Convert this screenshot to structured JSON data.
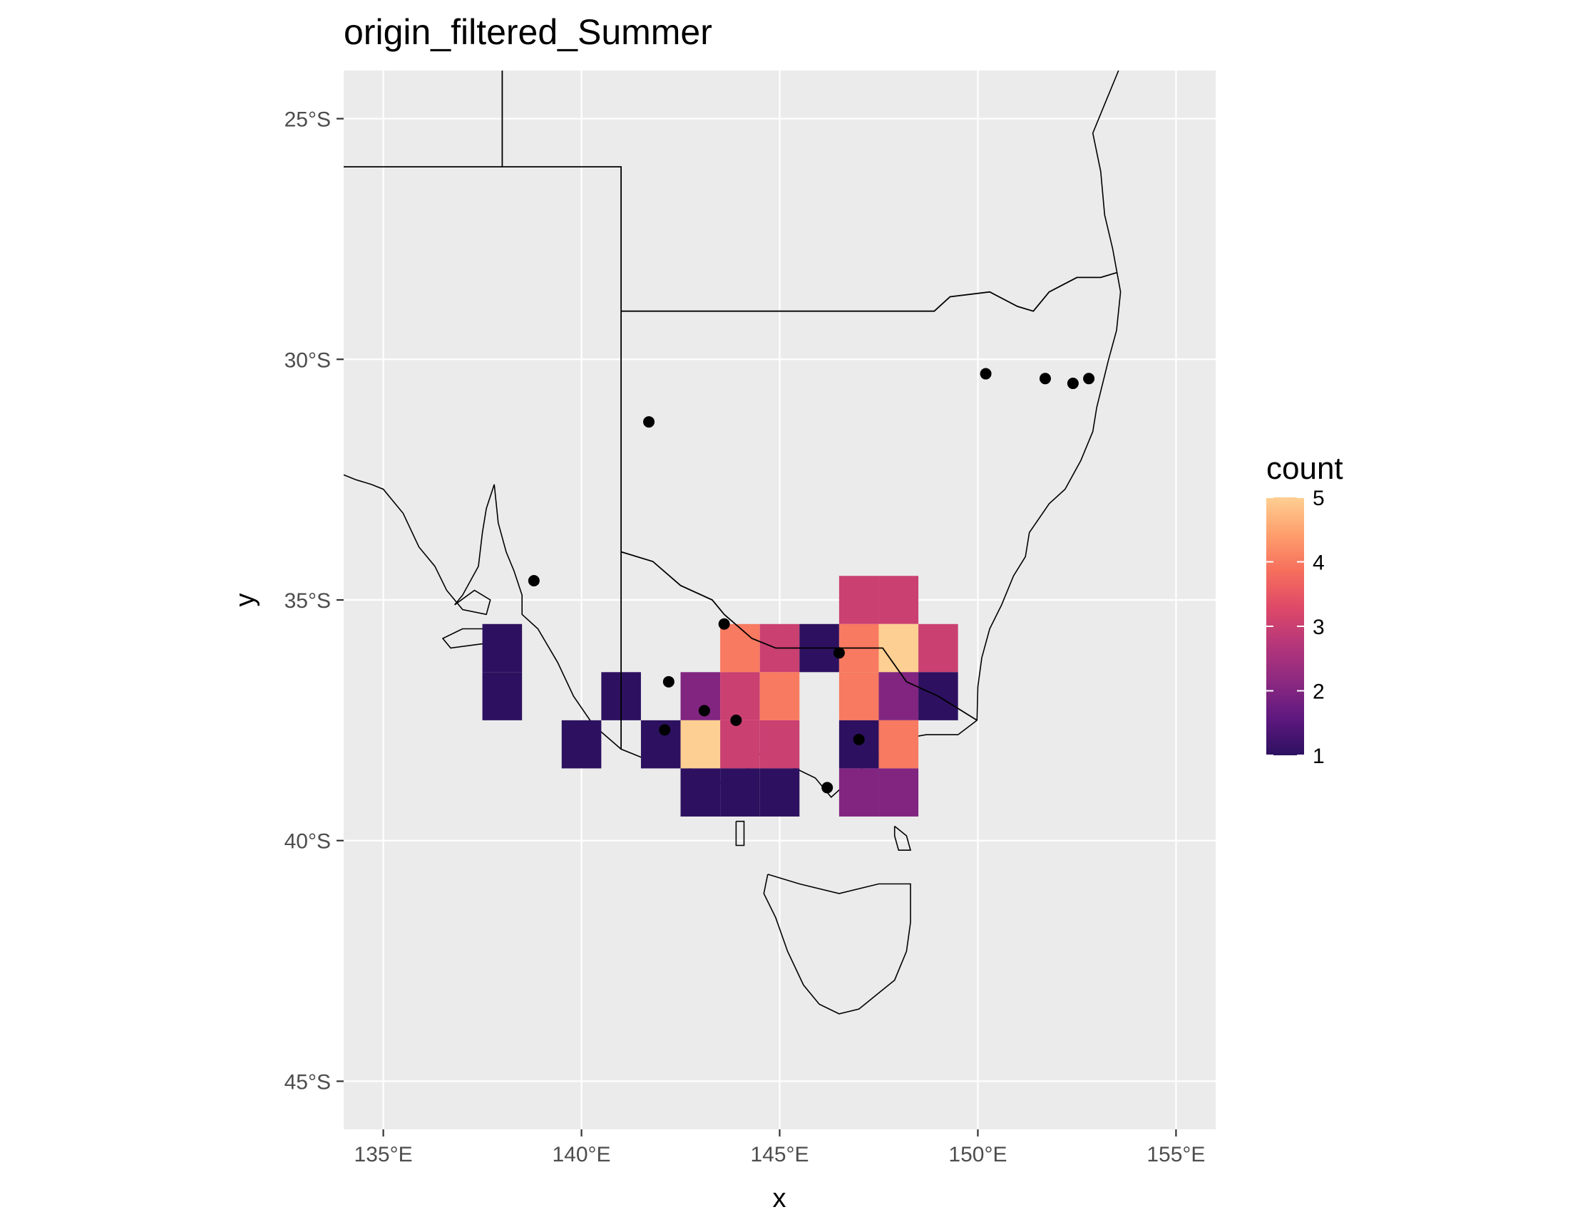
{
  "chart_data": {
    "type": "heatmap",
    "title": "origin_filtered_Summer",
    "xlabel": "x",
    "ylabel": "y",
    "xlim": [
      134,
      156
    ],
    "ylim": [
      -46,
      -24
    ],
    "x_ticks": [
      135,
      140,
      145,
      150,
      155
    ],
    "x_tick_labels": [
      "135°E",
      "140°E",
      "145°E",
      "150°E",
      "155°E"
    ],
    "y_ticks": [
      -25,
      -30,
      -35,
      -40,
      -45
    ],
    "y_tick_labels": [
      "25°S",
      "30°S",
      "35°S",
      "40°S",
      "45°S"
    ],
    "grid": true,
    "background": "#ebebeb",
    "legend": {
      "title": "count",
      "position": "right",
      "min": 1,
      "max": 5,
      "breaks": [
        1,
        2,
        3,
        4,
        5
      ],
      "break_labels": [
        "1",
        "2",
        "3",
        "4",
        "5"
      ],
      "palette": "magma",
      "colors": [
        "#2d1160",
        "#5e187f",
        "#8c2981",
        "#b5367a",
        "#de4968",
        "#f66e5c",
        "#fe9f6d",
        "#fecf92"
      ]
    },
    "bin_size": 1,
    "cells": [
      {
        "x": 138,
        "y": -36,
        "count": 1
      },
      {
        "x": 138,
        "y": -37,
        "count": 1
      },
      {
        "x": 140,
        "y": -38,
        "count": 1
      },
      {
        "x": 141,
        "y": -37,
        "count": 1
      },
      {
        "x": 142,
        "y": -38,
        "count": 1
      },
      {
        "x": 143,
        "y": -37,
        "count": 2
      },
      {
        "x": 143,
        "y": -38,
        "count": 5
      },
      {
        "x": 143,
        "y": -39,
        "count": 1
      },
      {
        "x": 144,
        "y": -36,
        "count": 4
      },
      {
        "x": 144,
        "y": -37,
        "count": 3
      },
      {
        "x": 144,
        "y": -38,
        "count": 3
      },
      {
        "x": 144,
        "y": -39,
        "count": 1
      },
      {
        "x": 145,
        "y": -36,
        "count": 3
      },
      {
        "x": 145,
        "y": -37,
        "count": 4
      },
      {
        "x": 145,
        "y": -38,
        "count": 3
      },
      {
        "x": 145,
        "y": -39,
        "count": 1
      },
      {
        "x": 146,
        "y": -36,
        "count": 1
      },
      {
        "x": 147,
        "y": -35,
        "count": 3
      },
      {
        "x": 147,
        "y": -36,
        "count": 4
      },
      {
        "x": 147,
        "y": -37,
        "count": 4
      },
      {
        "x": 147,
        "y": -38,
        "count": 1
      },
      {
        "x": 147,
        "y": -39,
        "count": 2
      },
      {
        "x": 148,
        "y": -35,
        "count": 3
      },
      {
        "x": 148,
        "y": -36,
        "count": 5
      },
      {
        "x": 148,
        "y": -37,
        "count": 2
      },
      {
        "x": 148,
        "y": -38,
        "count": 4
      },
      {
        "x": 148,
        "y": -39,
        "count": 2
      },
      {
        "x": 149,
        "y": -36,
        "count": 3
      },
      {
        "x": 149,
        "y": -37,
        "count": 1
      }
    ],
    "points": [
      {
        "x": 138.8,
        "y": -34.6
      },
      {
        "x": 141.7,
        "y": -31.3
      },
      {
        "x": 143.6,
        "y": -35.5
      },
      {
        "x": 142.2,
        "y": -36.7
      },
      {
        "x": 143.1,
        "y": -37.3
      },
      {
        "x": 143.9,
        "y": -37.5
      },
      {
        "x": 142.1,
        "y": -37.7
      },
      {
        "x": 146.5,
        "y": -36.1
      },
      {
        "x": 147.0,
        "y": -37.9
      },
      {
        "x": 146.2,
        "y": -38.9
      },
      {
        "x": 150.2,
        "y": -30.3
      },
      {
        "x": 151.7,
        "y": -30.4
      },
      {
        "x": 152.4,
        "y": -30.5
      },
      {
        "x": 152.8,
        "y": -30.4
      }
    ],
    "boundaries": [
      [
        [
          138,
          -24
        ],
        [
          138,
          -26
        ],
        [
          134,
          -26
        ]
      ],
      [
        [
          138,
          -26
        ],
        [
          141,
          -26
        ],
        [
          141,
          -38.1
        ]
      ],
      [
        [
          141,
          -29
        ],
        [
          148.9,
          -29
        ],
        [
          149.3,
          -28.7
        ],
        [
          150.3,
          -28.6
        ],
        [
          151.0,
          -28.9
        ],
        [
          151.4,
          -29.0
        ],
        [
          151.8,
          -28.6
        ],
        [
          152.5,
          -28.3
        ],
        [
          153.1,
          -28.3
        ],
        [
          153.5,
          -28.2
        ]
      ],
      [
        [
          141,
          -34.0
        ],
        [
          141.8,
          -34.2
        ],
        [
          142.5,
          -34.7
        ],
        [
          143.3,
          -35.0
        ],
        [
          143.6,
          -35.3
        ],
        [
          144.3,
          -35.8
        ],
        [
          144.9,
          -36.0
        ],
        [
          145.5,
          -36.0
        ],
        [
          146.5,
          -36.0
        ],
        [
          147.1,
          -36.0
        ],
        [
          147.6,
          -36.0
        ],
        [
          148.2,
          -36.7
        ],
        [
          149.0,
          -37.0
        ],
        [
          149.98,
          -37.5
        ]
      ]
    ],
    "coastlines": [
      [
        [
          153.55,
          -24.0
        ],
        [
          153.2,
          -24.7
        ],
        [
          152.9,
          -25.3
        ],
        [
          153.1,
          -26.1
        ],
        [
          153.2,
          -27.0
        ],
        [
          153.4,
          -27.7
        ],
        [
          153.6,
          -28.6
        ],
        [
          153.5,
          -29.4
        ],
        [
          153.3,
          -30.0
        ],
        [
          153.0,
          -31.0
        ],
        [
          152.9,
          -31.5
        ],
        [
          152.6,
          -32.1
        ],
        [
          152.2,
          -32.7
        ],
        [
          151.8,
          -33.0
        ],
        [
          151.3,
          -33.6
        ],
        [
          151.2,
          -34.1
        ],
        [
          150.9,
          -34.5
        ],
        [
          150.6,
          -35.1
        ],
        [
          150.3,
          -35.6
        ],
        [
          150.1,
          -36.2
        ],
        [
          150.0,
          -36.8
        ],
        [
          149.98,
          -37.5
        ],
        [
          149.5,
          -37.8
        ],
        [
          148.7,
          -37.8
        ],
        [
          148.0,
          -37.9
        ],
        [
          147.3,
          -38.3
        ],
        [
          146.7,
          -38.8
        ],
        [
          146.3,
          -39.1
        ],
        [
          145.9,
          -38.7
        ],
        [
          145.4,
          -38.5
        ],
        [
          144.9,
          -38.4
        ],
        [
          144.5,
          -38.2
        ],
        [
          144.0,
          -38.7
        ],
        [
          143.5,
          -38.8
        ],
        [
          142.5,
          -38.4
        ],
        [
          141.6,
          -38.3
        ],
        [
          141.0,
          -38.1
        ],
        [
          140.3,
          -37.6
        ],
        [
          139.8,
          -37.0
        ],
        [
          139.4,
          -36.3
        ],
        [
          138.9,
          -35.6
        ],
        [
          138.5,
          -35.3
        ],
        [
          138.5,
          -34.9
        ],
        [
          138.3,
          -34.4
        ],
        [
          138.1,
          -34.0
        ],
        [
          137.9,
          -33.4
        ],
        [
          137.8,
          -32.6
        ],
        [
          137.6,
          -33.1
        ],
        [
          137.5,
          -33.6
        ],
        [
          137.4,
          -34.3
        ],
        [
          137.0,
          -34.9
        ],
        [
          136.8,
          -35.1
        ],
        [
          137.3,
          -34.8
        ],
        [
          137.7,
          -35.0
        ],
        [
          137.6,
          -35.3
        ],
        [
          137.0,
          -35.2
        ],
        [
          136.6,
          -34.8
        ],
        [
          136.3,
          -34.3
        ],
        [
          135.9,
          -33.9
        ],
        [
          135.5,
          -33.2
        ],
        [
          135.0,
          -32.7
        ],
        [
          134.7,
          -32.6
        ],
        [
          134.3,
          -32.5
        ],
        [
          134.0,
          -32.4
        ]
      ],
      [
        [
          137.6,
          -35.6
        ],
        [
          138.1,
          -35.65
        ],
        [
          138.2,
          -35.85
        ],
        [
          137.6,
          -35.9
        ],
        [
          136.7,
          -36.0
        ],
        [
          136.5,
          -35.8
        ],
        [
          137.0,
          -35.6
        ],
        [
          137.6,
          -35.6
        ]
      ],
      [
        [
          144.7,
          -40.7
        ],
        [
          145.5,
          -40.9
        ],
        [
          146.5,
          -41.1
        ],
        [
          147.5,
          -40.9
        ],
        [
          148.3,
          -40.9
        ],
        [
          148.3,
          -41.7
        ],
        [
          148.2,
          -42.3
        ],
        [
          147.9,
          -42.9
        ],
        [
          147.6,
          -43.1
        ],
        [
          147.3,
          -43.3
        ],
        [
          147.0,
          -43.5
        ],
        [
          146.5,
          -43.6
        ],
        [
          146.0,
          -43.4
        ],
        [
          145.6,
          -43.0
        ],
        [
          145.2,
          -42.3
        ],
        [
          144.9,
          -41.6
        ],
        [
          144.6,
          -41.1
        ],
        [
          144.7,
          -40.7
        ]
      ],
      [
        [
          143.9,
          -39.6
        ],
        [
          144.1,
          -39.6
        ],
        [
          144.1,
          -40.1
        ],
        [
          143.9,
          -40.1
        ],
        [
          143.9,
          -39.6
        ]
      ],
      [
        [
          147.9,
          -39.7
        ],
        [
          148.2,
          -39.9
        ],
        [
          148.3,
          -40.2
        ],
        [
          148.0,
          -40.2
        ],
        [
          147.9,
          -39.9
        ],
        [
          147.9,
          -39.7
        ]
      ]
    ]
  }
}
